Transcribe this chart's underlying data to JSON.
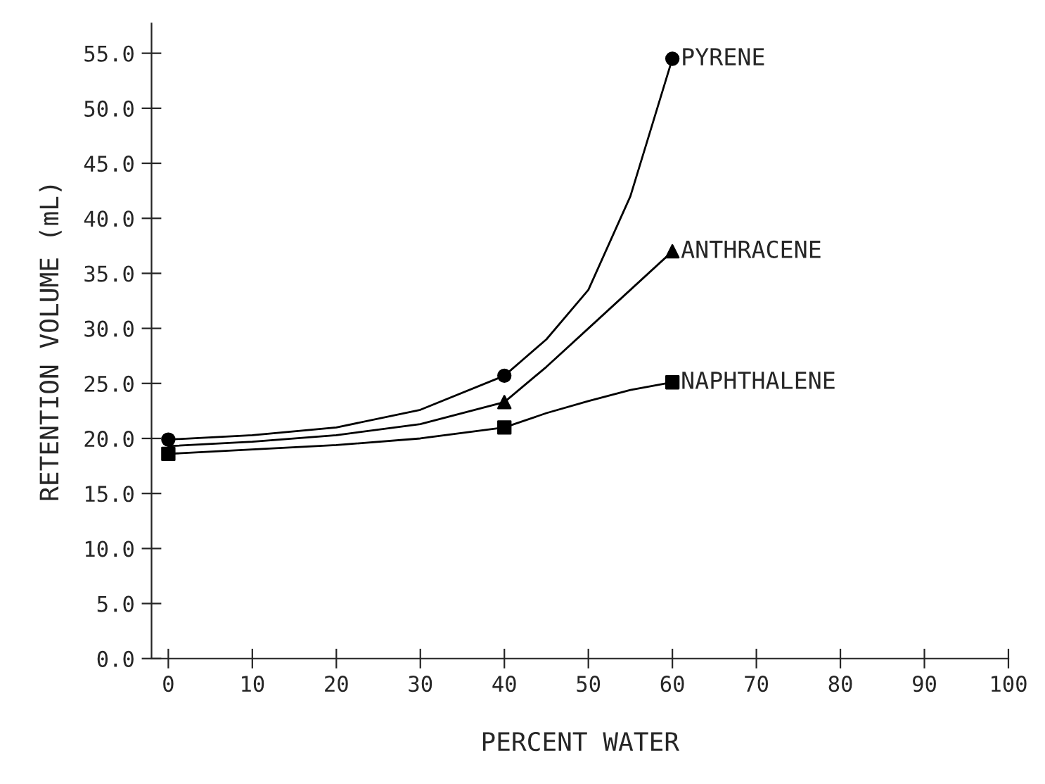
{
  "chart_data": {
    "type": "line",
    "xlabel": "PERCENT WATER",
    "ylabel": "RETENTION VOLUME (mL)",
    "x": [
      0,
      40,
      60
    ],
    "series": [
      {
        "color": "#000000",
        "x": [
          0,
          10,
          20,
          30,
          40,
          45,
          50,
          55,
          60
        ],
        "values": [
          19.9,
          20.3,
          21.0,
          22.6,
          25.7,
          29.0,
          33.5,
          42.0,
          54.5
        ]
      },
      {
        "color": "#000000",
        "x": [
          0,
          10,
          20,
          30,
          40,
          45,
          50,
          55,
          60
        ],
        "values": [
          19.3,
          19.7,
          20.3,
          21.3,
          23.3,
          26.5,
          30.0,
          33.5,
          37.0
        ]
      },
      {
        "color": "#000000",
        "x": [
          0,
          10,
          20,
          30,
          40,
          45,
          50,
          55,
          60
        ],
        "values": [
          18.6,
          19.0,
          19.4,
          20.0,
          21.0,
          22.3,
          23.4,
          24.4,
          25.1
        ]
      },
      {
        "type": "scatter",
        "name": "PYRENE",
        "color": "#000000",
        "marker": "circle",
        "values": [
          19.9,
          25.7,
          54.5
        ]
      },
      {
        "type": "scatter",
        "name": "ANTHRACENE",
        "color": "#000000",
        "marker": "triangle",
        "values": [
          null,
          23.3,
          37.0
        ]
      },
      {
        "type": "scatter",
        "name": "NAPHTHALENE",
        "color": "#000000",
        "marker": "square",
        "values": [
          18.6,
          21.0,
          25.1
        ]
      }
    ],
    "xlim": [
      -2,
      100
    ],
    "ylim": [
      0,
      57.7
    ],
    "xticks": [
      0,
      10,
      20,
      30,
      40,
      50,
      60,
      70,
      80,
      90,
      100
    ],
    "yticks": [
      {
        "value": 0,
        "label": "0.0"
      },
      {
        "value": 5,
        "label": "5.0"
      },
      {
        "value": 10,
        "label": "10.0"
      },
      {
        "value": 15,
        "label": "15.0"
      },
      {
        "value": 20,
        "label": "20.0"
      },
      {
        "value": 25,
        "label": "25.0"
      },
      {
        "value": 30,
        "label": "30.0"
      },
      {
        "value": 35,
        "label": "35.0"
      },
      {
        "value": 40,
        "label": "40.0"
      },
      {
        "value": 45,
        "label": "45.0"
      },
      {
        "value": 50,
        "label": "50.0"
      },
      {
        "value": 55,
        "label": "55.0"
      }
    ],
    "grid": false,
    "legend": false,
    "line_style": "solid"
  }
}
